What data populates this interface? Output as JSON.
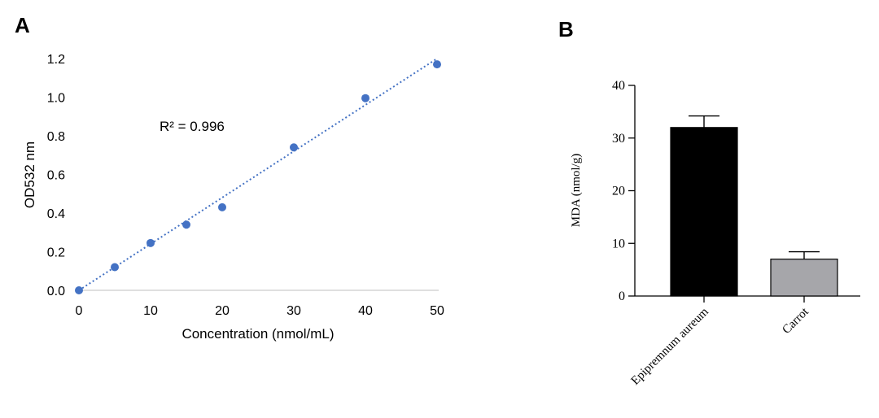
{
  "chart_data": [
    {
      "type": "scatter",
      "panel_label": "A",
      "xlabel": "Concentration (nmol/mL)",
      "ylabel": "OD532 nm",
      "xlim": [
        0,
        50
      ],
      "ylim": [
        0,
        1.2
      ],
      "x_ticks": [
        "0",
        "10",
        "20",
        "30",
        "40",
        "50"
      ],
      "y_ticks": [
        "0.0",
        "0.2",
        "0.4",
        "0.6",
        "0.8",
        "1.0",
        "1.2"
      ],
      "points": [
        {
          "x": 0,
          "y": 0.0
        },
        {
          "x": 5,
          "y": 0.12
        },
        {
          "x": 10,
          "y": 0.245
        },
        {
          "x": 15,
          "y": 0.34
        },
        {
          "x": 20,
          "y": 0.43
        },
        {
          "x": 30,
          "y": 0.74
        },
        {
          "x": 40,
          "y": 0.995
        },
        {
          "x": 50,
          "y": 1.17
        }
      ],
      "trendline": {
        "style": "dotted",
        "from": {
          "x": 0,
          "y": 0.0
        },
        "to": {
          "x": 50,
          "y": 1.2
        }
      },
      "annotation": "R² = 0.996",
      "marker_color": "#4472c4",
      "grid": false
    },
    {
      "type": "bar",
      "panel_label": "B",
      "ylabel": "MDA (nmol/g)",
      "ylim": [
        0,
        40
      ],
      "y_ticks": [
        "0",
        "10",
        "20",
        "30",
        "40"
      ],
      "categories": [
        "Epipremnum aureum",
        "Carrot"
      ],
      "values": [
        32,
        7
      ],
      "errors": [
        2.2,
        1.4
      ],
      "colors": [
        "#000000",
        "#a6a6aa"
      ],
      "grid": false
    }
  ]
}
